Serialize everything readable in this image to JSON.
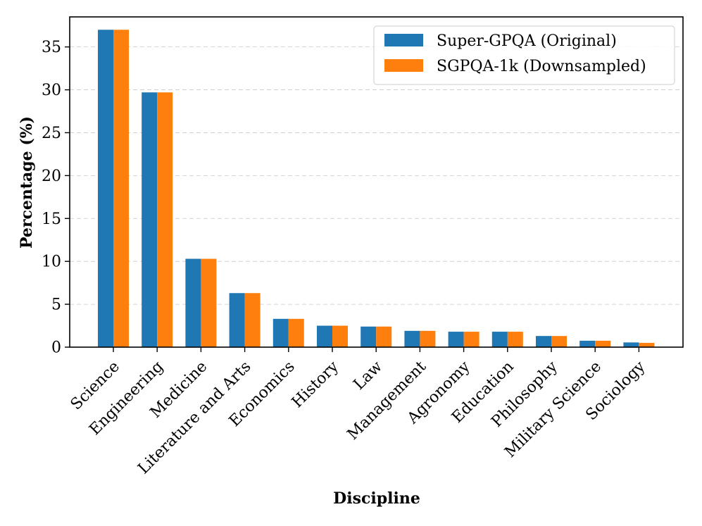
{
  "chart_data": {
    "type": "bar",
    "title": "",
    "xlabel": "Discipline",
    "ylabel": "Percentage (%)",
    "ylim": [
      0,
      38.5
    ],
    "yticks": [
      0,
      5,
      10,
      15,
      20,
      25,
      30,
      35
    ],
    "grid": "horizontal dashed",
    "legend_position": "top-right",
    "categories": [
      "Science",
      "Engineering",
      "Medicine",
      "Literature and Arts",
      "Economics",
      "History",
      "Law",
      "Management",
      "Agronomy",
      "Education",
      "Philosophy",
      "Military Science",
      "Sociology"
    ],
    "series": [
      {
        "name": "Super-GPQA (Original)",
        "color": "#1f77b4",
        "values": [
          37.0,
          29.7,
          10.3,
          6.3,
          3.3,
          2.5,
          2.4,
          1.9,
          1.8,
          1.8,
          1.3,
          0.75,
          0.55
        ]
      },
      {
        "name": "SGPQA-1k (Downsampled)",
        "color": "#ff7f0e",
        "values": [
          37.0,
          29.7,
          10.3,
          6.3,
          3.3,
          2.5,
          2.4,
          1.9,
          1.8,
          1.8,
          1.3,
          0.75,
          0.5
        ]
      }
    ]
  }
}
